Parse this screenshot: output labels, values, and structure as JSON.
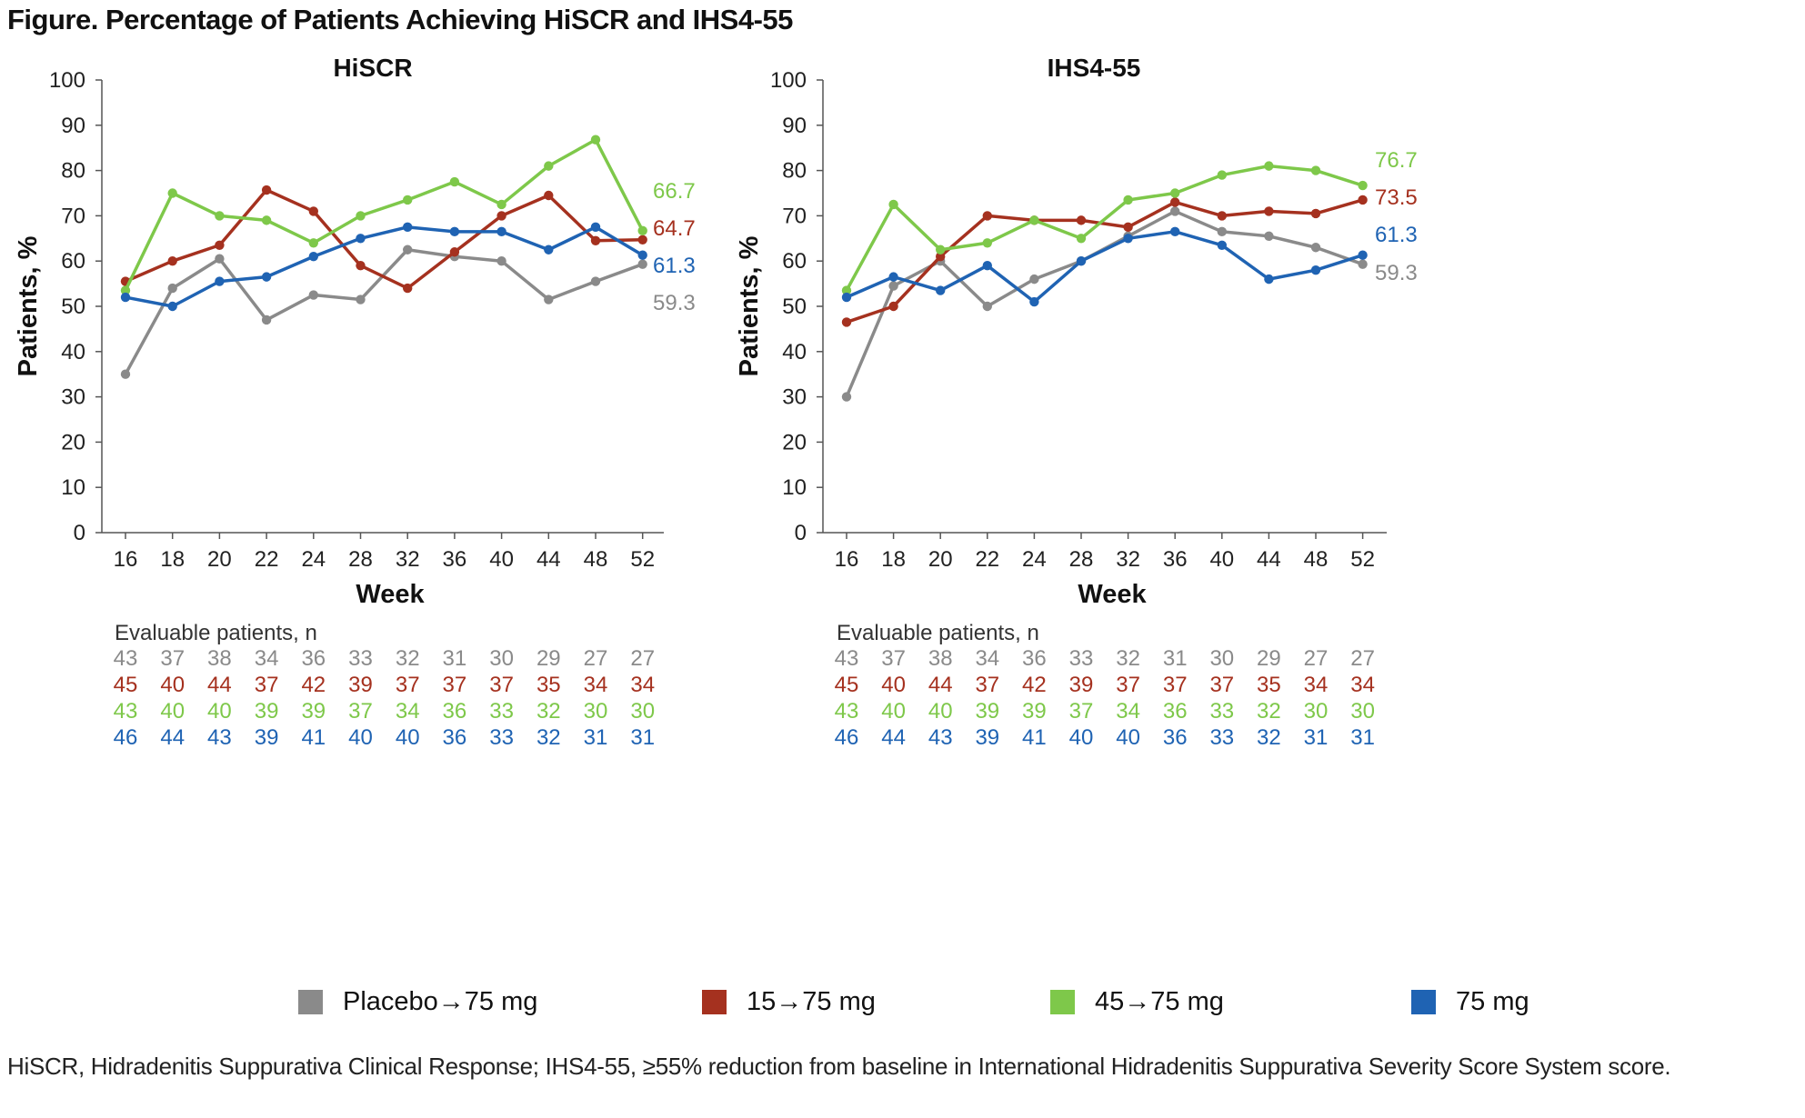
{
  "figure_title": "Figure. Percentage of Patients Achieving HiSCR and IHS4-55",
  "footnote": "HiSCR, Hidradenitis Suppurativa Clinical Response; IHS4-55, ≥55% reduction from baseline in International Hidradenitis Suppurativa Severity Score System score.",
  "colors": {
    "placebo": "#8a8a8a",
    "d15": "#a5311f",
    "d45": "#7ec84a",
    "d75": "#1f63b3"
  },
  "legend": [
    {
      "label": "Placebo→75 mg",
      "color": "#8a8a8a"
    },
    {
      "label": "15→75 mg",
      "color": "#a5311f"
    },
    {
      "label": "45→75 mg",
      "color": "#7ec84a"
    },
    {
      "label": "75 mg",
      "color": "#1f63b3"
    }
  ],
  "chart_data": [
    {
      "type": "line",
      "title": "HiSCR",
      "xlabel": "Week",
      "ylabel": "Patients, %",
      "ylim": [
        0,
        100
      ],
      "yticks": [
        0,
        10,
        20,
        30,
        40,
        50,
        60,
        70,
        80,
        90,
        100
      ],
      "categories": [
        "16",
        "18",
        "20",
        "22",
        "24",
        "28",
        "32",
        "36",
        "40",
        "44",
        "48",
        "52"
      ],
      "series": [
        {
          "name": "Placebo→75 mg",
          "color": "#8a8a8a",
          "values": [
            35,
            54,
            60.5,
            47,
            52.5,
            51.5,
            62.5,
            61,
            60,
            51.5,
            55.5,
            59.3
          ],
          "end_label": "59.3"
        },
        {
          "name": "15→75 mg",
          "color": "#a5311f",
          "values": [
            55.5,
            60,
            63.5,
            75.7,
            71,
            59,
            54,
            62,
            70,
            74.5,
            64.5,
            64.7
          ],
          "end_label": "64.7"
        },
        {
          "name": "45→75 mg",
          "color": "#7ec84a",
          "values": [
            53.5,
            75,
            70,
            69,
            64,
            70,
            73.5,
            77.5,
            72.5,
            81,
            86.8,
            66.7
          ],
          "end_label": "66.7"
        },
        {
          "name": "75 mg",
          "color": "#1f63b3",
          "values": [
            52,
            50,
            55.5,
            56.5,
            61,
            65,
            67.5,
            66.5,
            66.5,
            62.5,
            67.5,
            61.3
          ],
          "end_label": "61.3"
        }
      ],
      "evaluable_label": "Evaluable patients, n",
      "evaluable": [
        [
          43,
          37,
          38,
          34,
          36,
          33,
          32,
          31,
          30,
          29,
          27,
          27
        ],
        [
          45,
          40,
          44,
          37,
          42,
          39,
          37,
          37,
          37,
          35,
          34,
          34
        ],
        [
          43,
          40,
          40,
          39,
          39,
          37,
          34,
          36,
          33,
          32,
          30,
          30
        ],
        [
          46,
          44,
          43,
          39,
          41,
          40,
          40,
          36,
          33,
          32,
          31,
          31
        ]
      ]
    },
    {
      "type": "line",
      "title": "IHS4-55",
      "xlabel": "Week",
      "ylabel": "Patients, %",
      "ylim": [
        0,
        100
      ],
      "yticks": [
        0,
        10,
        20,
        30,
        40,
        50,
        60,
        70,
        80,
        90,
        100
      ],
      "categories": [
        "16",
        "18",
        "20",
        "22",
        "24",
        "28",
        "32",
        "36",
        "40",
        "44",
        "48",
        "52"
      ],
      "series": [
        {
          "name": "Placebo→75 mg",
          "color": "#8a8a8a",
          "values": [
            30,
            54.5,
            60,
            50,
            56,
            60,
            65.5,
            71,
            66.5,
            65.5,
            63,
            59.3
          ],
          "end_label": "59.3"
        },
        {
          "name": "15→75 mg",
          "color": "#a5311f",
          "values": [
            46.5,
            50,
            61,
            70,
            69,
            69,
            67.5,
            73,
            70,
            71,
            70.5,
            73.5
          ],
          "end_label": "73.5"
        },
        {
          "name": "45→75 mg",
          "color": "#7ec84a",
          "values": [
            53.5,
            72.5,
            62.5,
            64,
            69,
            65,
            73.5,
            75,
            79,
            81,
            80,
            76.7
          ],
          "end_label": "76.7"
        },
        {
          "name": "75 mg",
          "color": "#1f63b3",
          "values": [
            52,
            56.5,
            53.5,
            59,
            51,
            60,
            65,
            66.5,
            63.5,
            56,
            58,
            61.3
          ],
          "end_label": "61.3"
        }
      ],
      "evaluable_label": "Evaluable patients, n",
      "evaluable": [
        [
          43,
          37,
          38,
          34,
          36,
          33,
          32,
          31,
          30,
          29,
          27,
          27
        ],
        [
          45,
          40,
          44,
          37,
          42,
          39,
          37,
          37,
          37,
          35,
          34,
          34
        ],
        [
          43,
          40,
          40,
          39,
          39,
          37,
          34,
          36,
          33,
          32,
          30,
          30
        ],
        [
          46,
          44,
          43,
          39,
          41,
          40,
          40,
          36,
          33,
          32,
          31,
          31
        ]
      ]
    }
  ]
}
